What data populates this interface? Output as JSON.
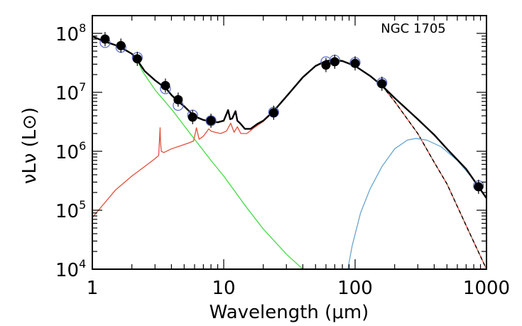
{
  "chart_data": {
    "type": "line",
    "annotation": "NGC 1705",
    "xlabel": "Wavelength (μm)",
    "ylabel": "νLν (L⊙)",
    "x_scale": "log",
    "y_scale": "log",
    "xlim": [
      1,
      1000
    ],
    "ylim": [
      10000,
      200000000
    ],
    "x_ticks": [
      {
        "value": 1,
        "label": "1"
      },
      {
        "value": 10,
        "label": "10"
      },
      {
        "value": 100,
        "label": "100"
      },
      {
        "value": 1000,
        "label": "1000"
      }
    ],
    "y_ticks": [
      {
        "value": 10000,
        "mant": "10",
        "exp": "4"
      },
      {
        "value": 100000,
        "mant": "10",
        "exp": "5"
      },
      {
        "value": 1000000,
        "mant": "10",
        "exp": "6"
      },
      {
        "value": 10000000,
        "mant": "10",
        "exp": "7"
      },
      {
        "value": 100000000,
        "mant": "10",
        "exp": "8"
      }
    ],
    "colors": {
      "total": "#000000",
      "stellar": "#44dd44",
      "dust": "#e0503c",
      "cold_dust": "#6aa6d0",
      "photometry": "#000000",
      "model_points": "#5566cc"
    },
    "series": [
      {
        "key": "total",
        "x": [
          1,
          1.2,
          1.6,
          2.0,
          2.2,
          2.5,
          3.0,
          3.4,
          3.6,
          4.0,
          4.5,
          5.0,
          5.8,
          6.2,
          7.0,
          8.0,
          9.0,
          10.0,
          10.8,
          11.2,
          11.6,
          12.3,
          12.7,
          13.3,
          14.5,
          16,
          18,
          20,
          24,
          30,
          40,
          50,
          60,
          70,
          80,
          100,
          130,
          160,
          200,
          300,
          400,
          500,
          700,
          870,
          1000
        ],
        "y": [
          89000000.0,
          75000000.0,
          60000000.0,
          45000000.0,
          35000000.0,
          23000000.0,
          16000000.0,
          13000000.0,
          12000000.0,
          9000000.0,
          7000000.0,
          5800000.0,
          4200000.0,
          3800000.0,
          3400000.0,
          3200000.0,
          3100000.0,
          3300000.0,
          5000000.0,
          3500000.0,
          3600000.0,
          4800000.0,
          3300000.0,
          3000000.0,
          2400000.0,
          2400000.0,
          2900000.0,
          3300000.0,
          4800000.0,
          8500000.0,
          18000000.0,
          28000000.0,
          34000000.0,
          35000000.0,
          34000000.0,
          28000000.0,
          19000000.0,
          13000000.0,
          8000000.0,
          3500000.0,
          1900000.0,
          1100000.0,
          500000.0,
          250000.0,
          160000.0
        ]
      },
      {
        "key": "stellar",
        "x": [
          1,
          1.2,
          1.6,
          2.0,
          2.2,
          2.4,
          3.0,
          4.0,
          6.0,
          8.0,
          10,
          15,
          20,
          30,
          40
        ],
        "y": [
          89000000.0,
          75000000.0,
          60000000.0,
          45000000.0,
          35000000.0,
          23000000.0,
          11000000.0,
          5200000.0,
          1600000.0,
          700000.0,
          380000.0,
          110000.0,
          48000.0,
          18000.0,
          10000.0
        ]
      },
      {
        "key": "dust",
        "x": [
          1,
          1.5,
          2.0,
          2.5,
          3.0,
          3.2,
          3.28,
          3.3,
          3.35,
          3.5,
          4.0,
          4.5,
          5.0,
          5.5,
          5.9,
          6.2,
          6.5,
          7.0,
          7.7,
          8.0,
          8.6,
          9.5,
          10.5,
          11.3,
          12,
          12.7,
          13.5,
          15,
          17,
          20,
          24,
          30,
          40,
          50,
          60,
          70,
          80,
          100,
          130,
          160,
          200,
          300,
          400,
          500,
          700,
          1000
        ],
        "y": [
          75000.0,
          220000.0,
          380000.0,
          550000.0,
          750000.0,
          850000.0,
          2500000.0,
          1500000.0,
          1000000.0,
          950000.0,
          1100000.0,
          1200000.0,
          1300000.0,
          1400000.0,
          1500000.0,
          2500000.0,
          1600000.0,
          1800000.0,
          2400000.0,
          2200000.0,
          2100000.0,
          2000000.0,
          2200000.0,
          3000000.0,
          2100000.0,
          2600000.0,
          2000000.0,
          2000000.0,
          2500000.0,
          3200000.0,
          4700000.0,
          8500000.0,
          18000000.0,
          28000000.0,
          34000000.0,
          35000000.0,
          34000000.0,
          28000000.0,
          19000000.0,
          13000000.0,
          7000000.0,
          2000000.0,
          650000.0,
          280000.0,
          55000.0,
          10000.0
        ]
      },
      {
        "key": "cold_dust",
        "x": [
          88,
          95,
          110,
          130,
          160,
          200,
          250,
          290,
          350,
          450,
          600,
          800,
          1000
        ],
        "y": [
          10000.0,
          25000.0,
          90000.0,
          230000.0,
          550000.0,
          1100000.0,
          1550000.0,
          1650000.0,
          1550000.0,
          1200000.0,
          700000.0,
          330000.0,
          160000.0
        ]
      },
      {
        "key": "model_points",
        "x": [
          1.25,
          1.65,
          2.2,
          3.6,
          4.5,
          5.8,
          8.0,
          24,
          60,
          70,
          100,
          160,
          870
        ],
        "y": [
          70000000.0,
          58000000.0,
          39000000.0,
          11500000.0,
          6000000.0,
          4100000.0,
          3300000.0,
          4600000.0,
          33000000.0,
          35000000.0,
          32000000.0,
          14500000.0,
          260000.0
        ]
      },
      {
        "key": "photometry",
        "x": [
          1.25,
          1.65,
          2.2,
          3.6,
          4.5,
          5.8,
          8.0,
          24,
          60,
          70,
          100,
          160,
          870
        ],
        "y": [
          80000000.0,
          62000000.0,
          37000000.0,
          13000000.0,
          7500000.0,
          3800000.0,
          3300000.0,
          4500000.0,
          29000000.0,
          33000000.0,
          31000000.0,
          14000000.0,
          250000.0
        ]
      }
    ],
    "grid": false,
    "legend": "none"
  }
}
